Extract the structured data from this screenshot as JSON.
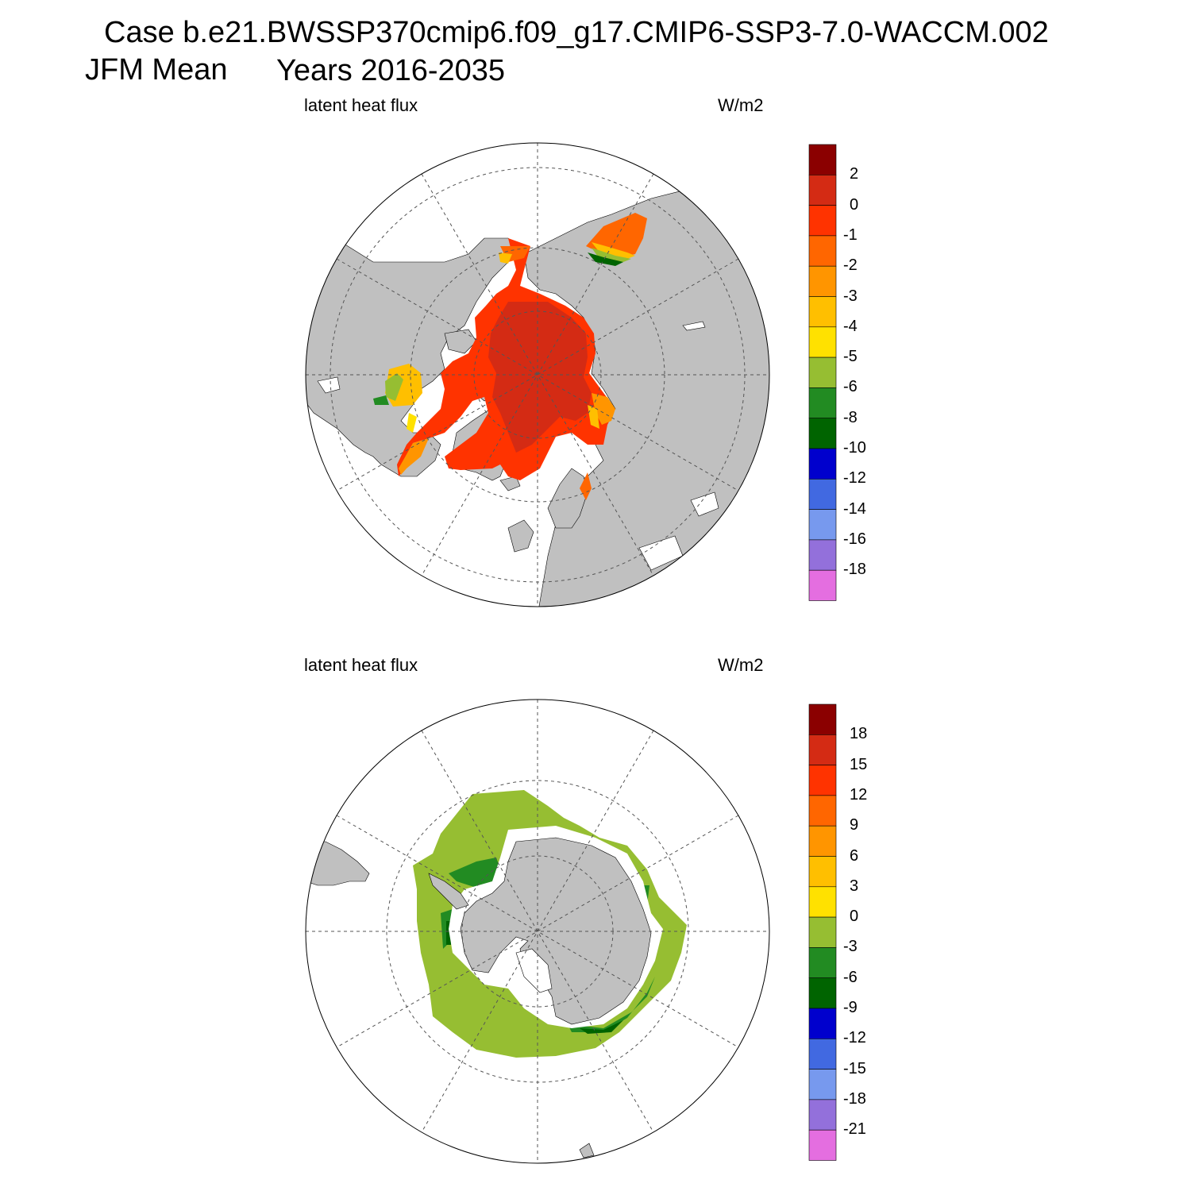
{
  "header": {
    "case_line": "Case b.e21.BWSSP370cmip6.f09_g17.CMIP6-SSP3-7.0-WACCM.002",
    "season": "JFM Mean",
    "years": "Years 2016-2035"
  },
  "panels": [
    {
      "hemisphere": "north",
      "variable": "latent heat flux",
      "units": "W/m2",
      "colorbar_labels": [
        "2",
        "0",
        "-1",
        "-2",
        "-3",
        "-4",
        "-5",
        "-6",
        "-8",
        "-10",
        "-12",
        "-14",
        "-16",
        "-18"
      ]
    },
    {
      "hemisphere": "south",
      "variable": "latent heat flux",
      "units": "W/m2",
      "colorbar_labels": [
        "18",
        "15",
        "12",
        "9",
        "6",
        "3",
        "0",
        "-3",
        "-6",
        "-9",
        "-12",
        "-15",
        "-18",
        "-21"
      ]
    }
  ],
  "colors": {
    "land": "#c0c0c0",
    "colorbar": [
      "#8b0000",
      "#d42b14",
      "#ff3300",
      "#ff6600",
      "#ff9500",
      "#ffbf00",
      "#ffe100",
      "#96be32",
      "#228b22",
      "#006400",
      "#0000cd",
      "#4169e1",
      "#7799ee",
      "#9370db",
      "#e46ee0"
    ]
  }
}
